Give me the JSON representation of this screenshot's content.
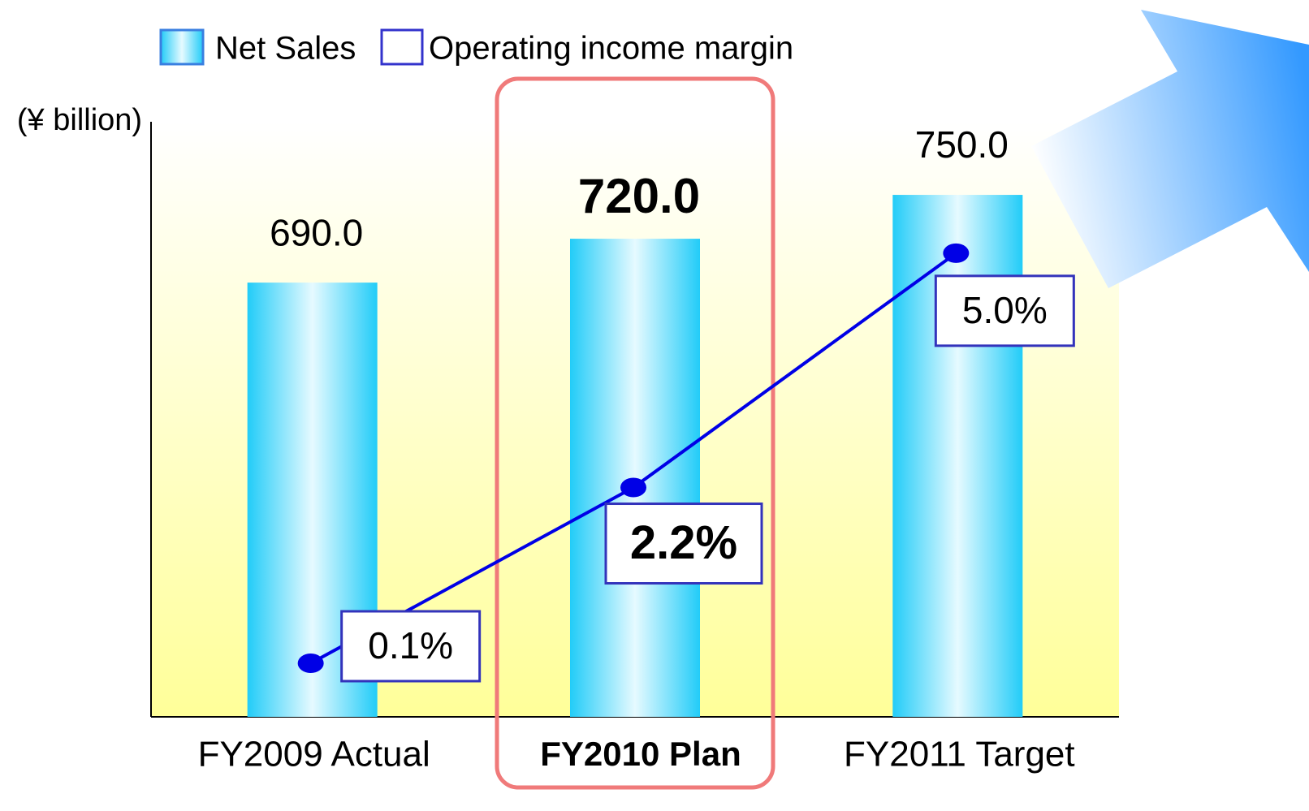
{
  "chart_data": {
    "type": "bar-line",
    "y_label": "(¥ billion)",
    "categories": [
      "FY2009 Actual",
      "FY2010 Plan",
      "FY2011 Target"
    ],
    "highlight_category": 1,
    "series": [
      {
        "name": "Net Sales",
        "type": "bar",
        "color": "#22ccf8",
        "values": [
          690,
          720,
          750
        ],
        "value_labels": [
          "690.0",
          "720.0",
          "750.0"
        ]
      },
      {
        "name": "Operating income margin",
        "type": "line",
        "axis": "y2",
        "color": "#0000e6",
        "values": [
          0.1,
          2.2,
          5.0
        ],
        "value_labels": [
          "0.1%",
          "2.2%",
          "5.0%"
        ]
      }
    ],
    "ylim": [
      393,
      800
    ],
    "y2lim": [
      -0.54,
      6.57
    ],
    "grid": false,
    "legend": "top"
  }
}
